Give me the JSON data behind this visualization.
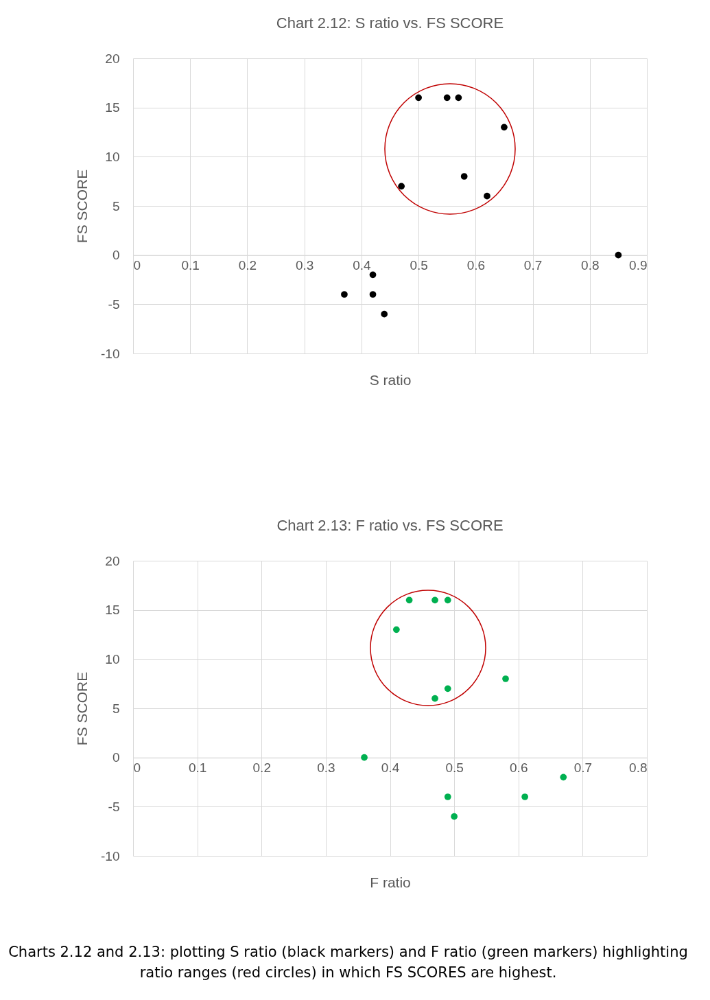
{
  "chart_data": [
    {
      "type": "scatter",
      "title": "Chart 2.12: S ratio vs. FS SCORE",
      "xlabel": "S ratio",
      "ylabel": "FS SCORE",
      "marker": "circle",
      "grid": true,
      "series": [
        {
          "color": "#000000",
          "x": [
            0.5,
            0.55,
            0.57,
            0.65,
            0.47,
            0.58,
            0.62,
            0.85,
            0.42,
            0.37,
            0.42,
            0.44
          ],
          "values": [
            16,
            16,
            16,
            13,
            7,
            8,
            6,
            0,
            -2,
            -4,
            -4,
            -6
          ]
        }
      ],
      "xlim": [
        0,
        0.9
      ],
      "xticks": [
        0,
        0.1,
        0.2,
        0.3,
        0.4,
        0.5,
        0.6,
        0.7,
        0.8,
        0.9
      ],
      "ylim": [
        -10,
        20
      ],
      "yticks": [
        -10,
        -5,
        0,
        5,
        10,
        15,
        20
      ]
    },
    {
      "type": "scatter",
      "title": "Chart 2.13: F ratio vs. FS SCORE",
      "xlabel": "F ratio",
      "ylabel": "FS SCORE",
      "marker": "circle",
      "grid": true,
      "series": [
        {
          "color": "#00b050",
          "x": [
            0.43,
            0.47,
            0.49,
            0.41,
            0.58,
            0.49,
            0.47,
            0.36,
            0.67,
            0.49,
            0.61,
            0.5
          ],
          "values": [
            16,
            16,
            16,
            13,
            8,
            7,
            6,
            0,
            -2,
            -4,
            -4,
            -6
          ]
        }
      ],
      "xlim": [
        0,
        0.8
      ],
      "xticks": [
        0,
        0.1,
        0.2,
        0.3,
        0.4,
        0.5,
        0.6,
        0.7,
        0.8
      ],
      "ylim": [
        -10,
        20
      ],
      "yticks": [
        -10,
        -5,
        0,
        5,
        10,
        15,
        20
      ],
      "annotations": [
        "Charts 2.12 and 2.13: plotting S ratio (black markers) and F ratio (green markers) highlighting ratio ranges (red circles) in which FS SCORES are highest."
      ]
    }
  ]
}
